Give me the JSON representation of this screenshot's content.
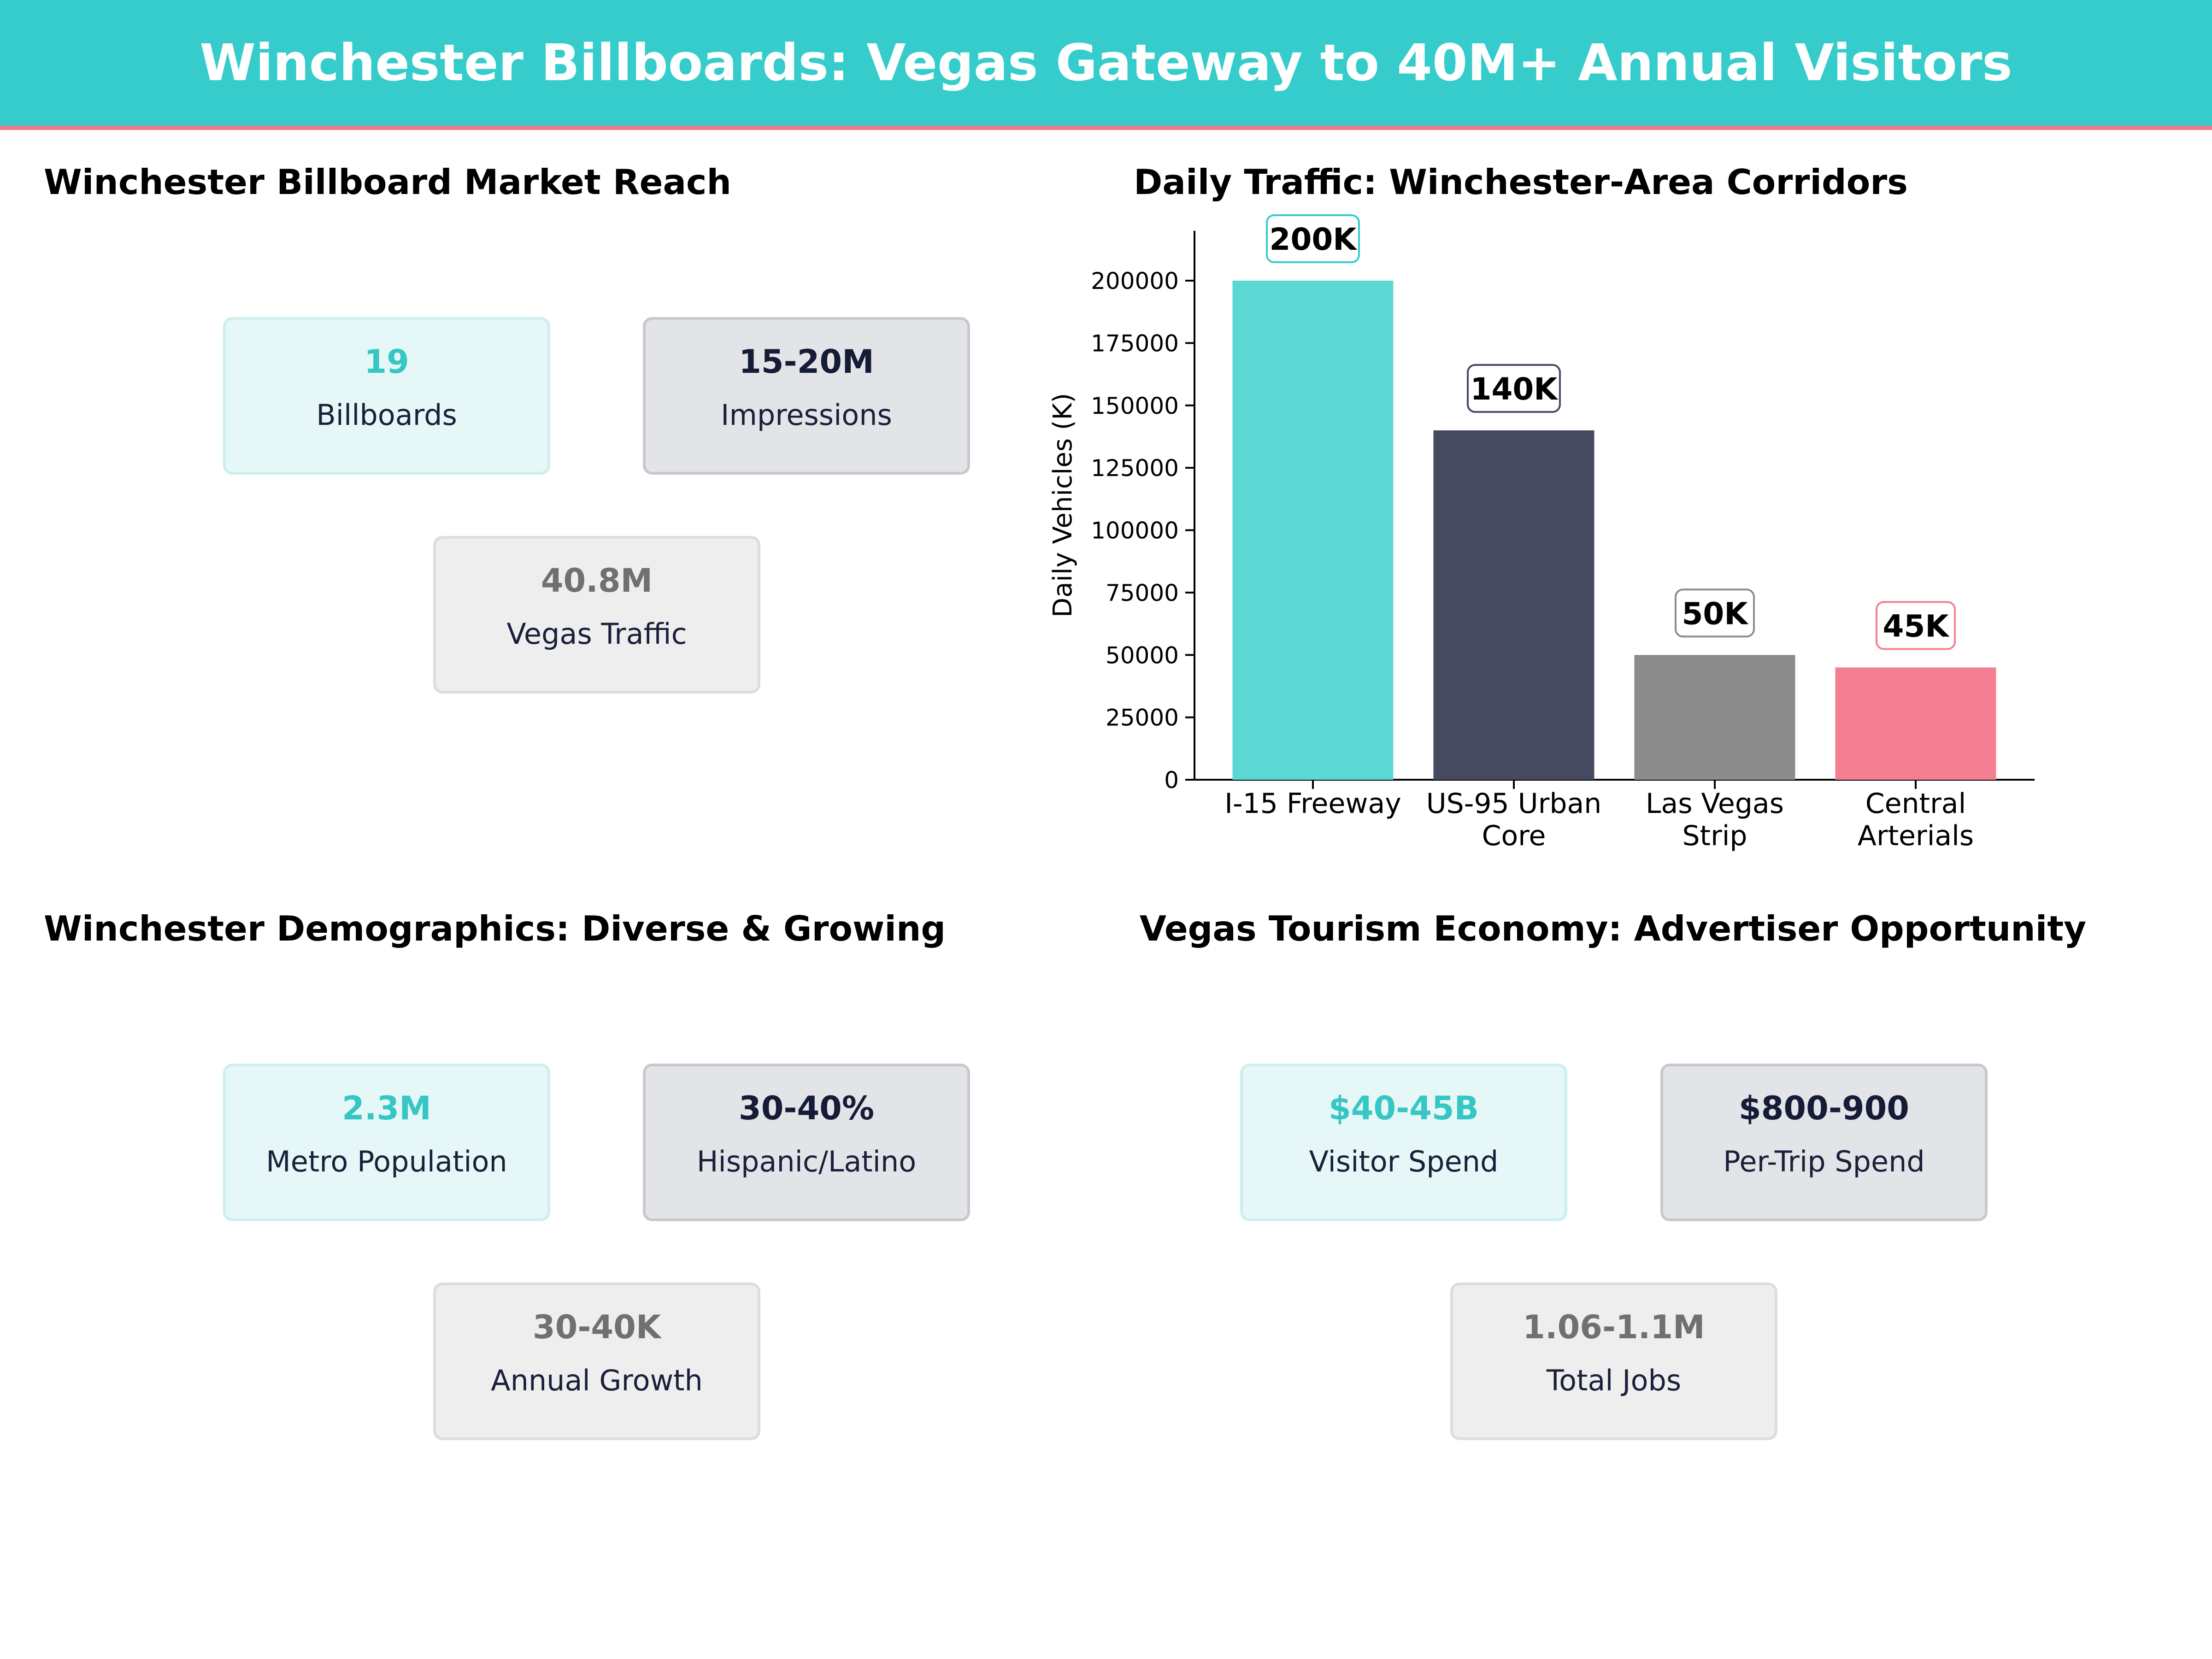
{
  "banner": {
    "title": "Winchester Billboards: Vegas Gateway to 40M+ Annual Visitors"
  },
  "panels": {
    "reach": {
      "title": "Winchester Billboard Market Reach",
      "cards": [
        {
          "value": "19",
          "label": "Billboards"
        },
        {
          "value": "15-20M",
          "label": "Impressions"
        },
        {
          "value": "40.8M",
          "label": "Vegas Traffic"
        }
      ]
    },
    "traffic": {
      "title": "Daily Traffic: Winchester-Area Corridors"
    },
    "demographics": {
      "title": "Winchester Demographics: Diverse & Growing",
      "cards": [
        {
          "value": "2.3M",
          "label": "Metro Population"
        },
        {
          "value": "30-40%",
          "label": "Hispanic/Latino"
        },
        {
          "value": "30-40K",
          "label": "Annual Growth"
        }
      ]
    },
    "tourism": {
      "title": "Vegas Tourism Economy: Advertiser Opportunity",
      "cards": [
        {
          "value": "$40-45B",
          "label": "Visitor Spend"
        },
        {
          "value": "$800-900",
          "label": "Per-Trip Spend"
        },
        {
          "value": "1.06-1.1M",
          "label": "Total Jobs"
        }
      ]
    }
  },
  "colors": {
    "teal": "#36CCCC",
    "navy": "#454A5E",
    "gray": "#8C8C8C",
    "pink": "#F47E92"
  },
  "chart_data": {
    "type": "bar",
    "title": "Daily Traffic: Winchester-Area Corridors",
    "categories": [
      [
        "I-15 Freeway"
      ],
      [
        "US-95 Urban",
        "Core"
      ],
      [
        "Las Vegas",
        "Strip"
      ],
      [
        "Central",
        "Arterials"
      ]
    ],
    "values": [
      200000,
      140000,
      50000,
      45000
    ],
    "value_labels": [
      "200K",
      "140K",
      "50K",
      "45K"
    ],
    "bar_colors": [
      "#5CD8D4",
      "#454A5E",
      "#8C8C8C",
      "#F47E92"
    ],
    "label_border_colors": [
      "#36CCCC",
      "#454A5E",
      "#8C8C8C",
      "#F47E92"
    ],
    "xlabel": "",
    "ylabel": "Daily Vehicles (K)",
    "ylim": [
      0,
      220000
    ],
    "yticks": [
      0,
      25000,
      50000,
      75000,
      100000,
      125000,
      150000,
      175000,
      200000
    ],
    "grid": false,
    "legend": "none"
  }
}
